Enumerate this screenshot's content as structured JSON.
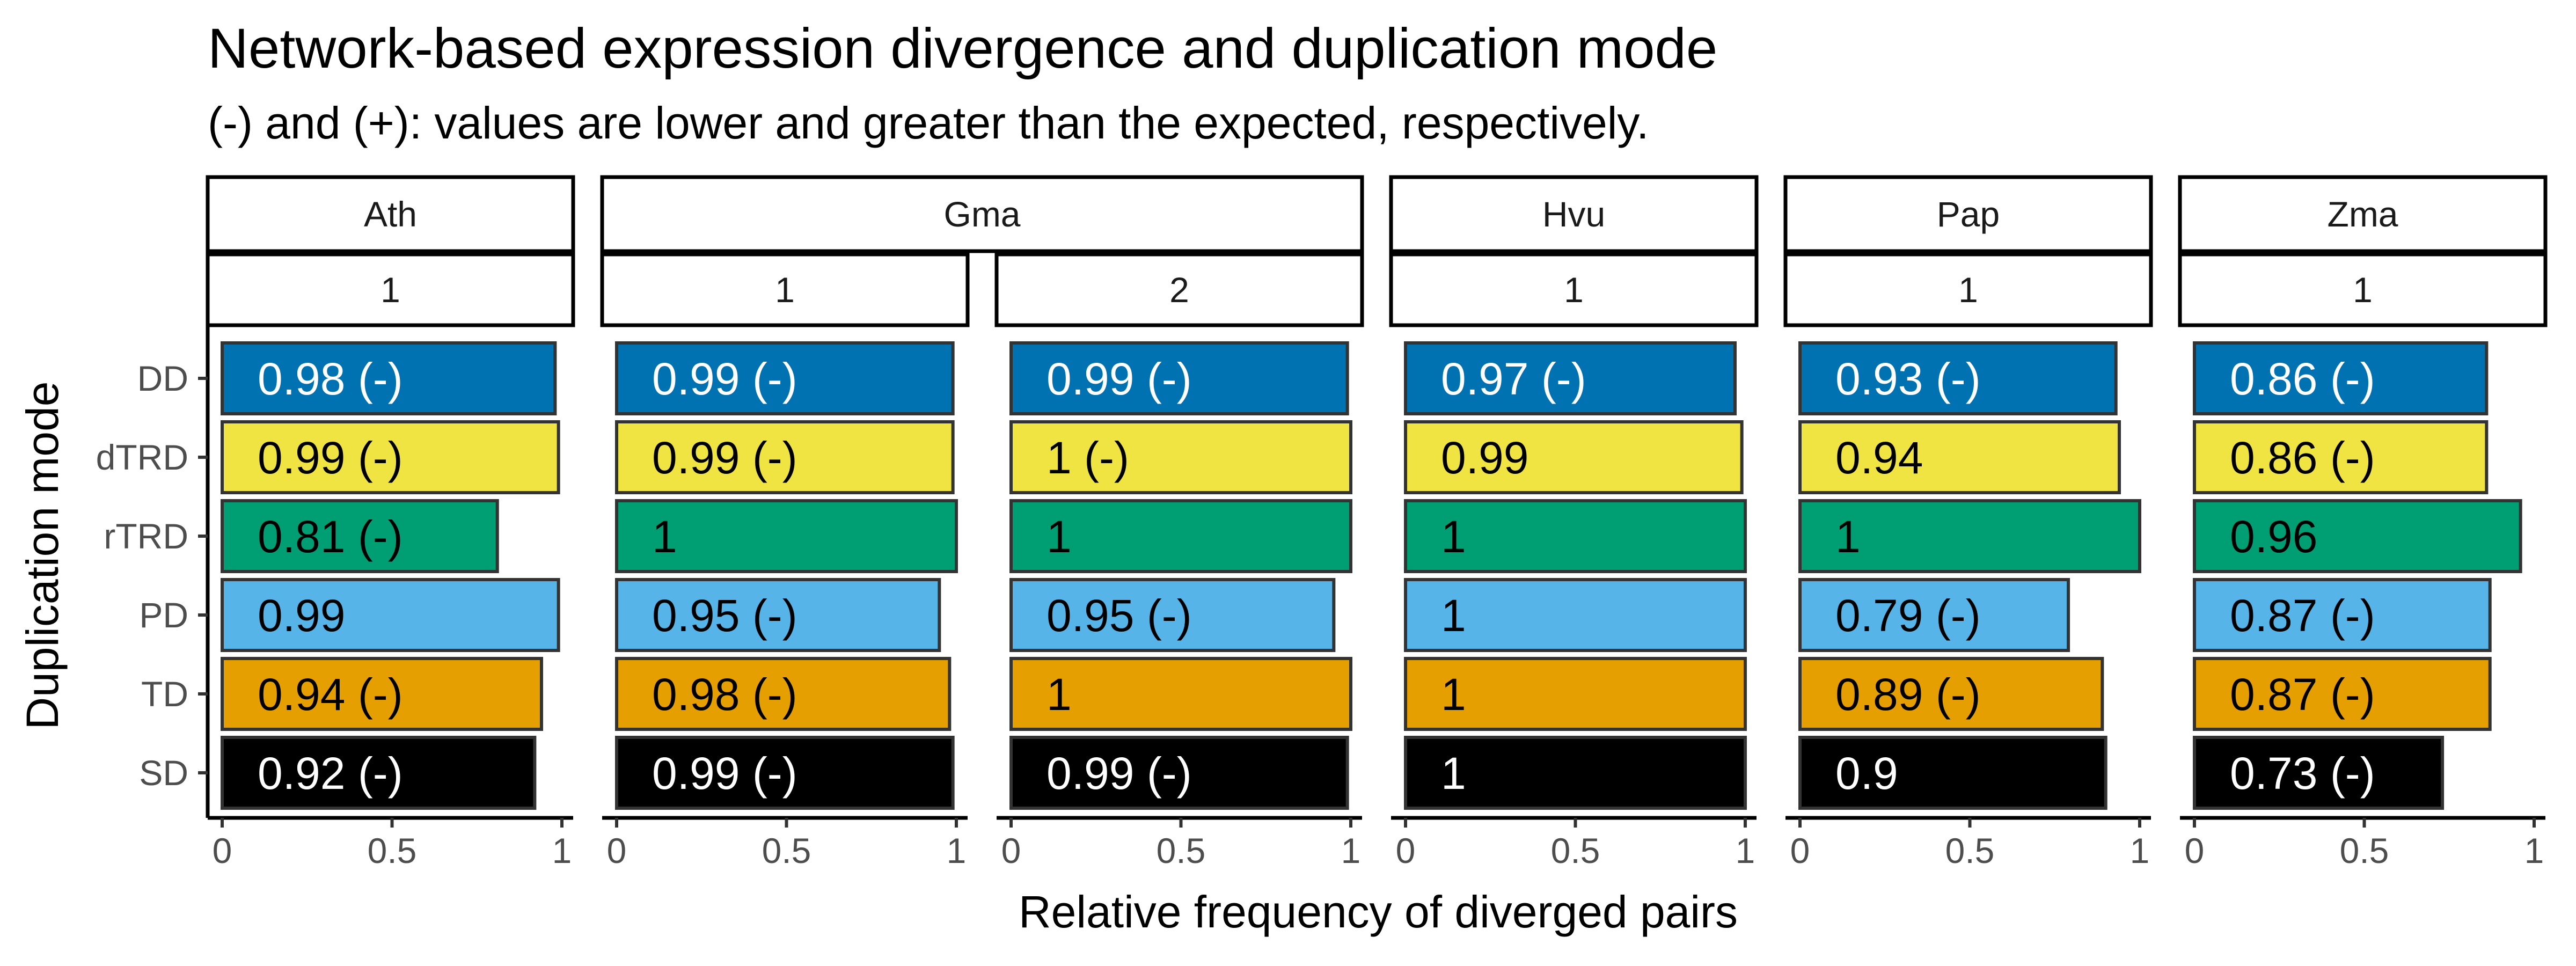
{
  "chart_data": {
    "type": "bar",
    "orientation": "horizontal",
    "title": "Network-based expression divergence and duplication mode",
    "subtitle": "(-) and (+): values are lower and greater than the expected, respectively.",
    "xlabel": "Relative frequency of diverged pairs",
    "ylabel": "Duplication mode",
    "xlim": [
      0,
      1
    ],
    "x_ticks": [
      "0",
      "0.5",
      "1"
    ],
    "categories": [
      "DD",
      "dTRD",
      "rTRD",
      "PD",
      "TD",
      "SD"
    ],
    "category_colors": {
      "DD": "#0072B2",
      "dTRD": "#F0E442",
      "rTRD": "#009E73",
      "PD": "#56B4E9",
      "TD": "#E69F00",
      "SD": "#000000"
    },
    "label_colors": {
      "DD": "#ffffff",
      "dTRD": "#000000",
      "rTRD": "#000000",
      "PD": "#000000",
      "TD": "#000000",
      "SD": "#ffffff"
    },
    "panels": [
      {
        "species": "Ath",
        "facet": "1",
        "values": [
          0.98,
          0.99,
          0.81,
          0.99,
          0.94,
          0.92
        ],
        "labels": [
          "0.98 (-)",
          "0.99 (-)",
          "0.81 (-)",
          "0.99",
          "0.94 (-)",
          "0.92 (-)"
        ]
      },
      {
        "species": "Gma",
        "facet": "1",
        "values": [
          0.99,
          0.99,
          1,
          0.95,
          0.98,
          0.99
        ],
        "labels": [
          "0.99 (-)",
          "0.99 (-)",
          "1",
          "0.95 (-)",
          "0.98 (-)",
          "0.99 (-)"
        ]
      },
      {
        "species": "Gma",
        "facet": "2",
        "values": [
          0.99,
          1,
          1,
          0.95,
          1,
          0.99
        ],
        "labels": [
          "0.99 (-)",
          "1 (-)",
          "1",
          "0.95 (-)",
          "1",
          "0.99 (-)"
        ]
      },
      {
        "species": "Hvu",
        "facet": "1",
        "values": [
          0.97,
          0.99,
          1,
          1,
          1,
          1
        ],
        "labels": [
          "0.97 (-)",
          "0.99",
          "1",
          "1",
          "1",
          "1"
        ]
      },
      {
        "species": "Pap",
        "facet": "1",
        "values": [
          0.93,
          0.94,
          1,
          0.79,
          0.89,
          0.9
        ],
        "labels": [
          "0.93 (-)",
          "0.94",
          "1",
          "0.79 (-)",
          "0.89 (-)",
          "0.9"
        ]
      },
      {
        "species": "Zma",
        "facet": "1",
        "values": [
          0.86,
          0.86,
          0.96,
          0.87,
          0.87,
          0.73
        ],
        "labels": [
          "0.86 (-)",
          "0.86 (-)",
          "0.96",
          "0.87 (-)",
          "0.87 (-)",
          "0.73 (-)"
        ]
      }
    ],
    "grid": false,
    "legend": "none"
  }
}
